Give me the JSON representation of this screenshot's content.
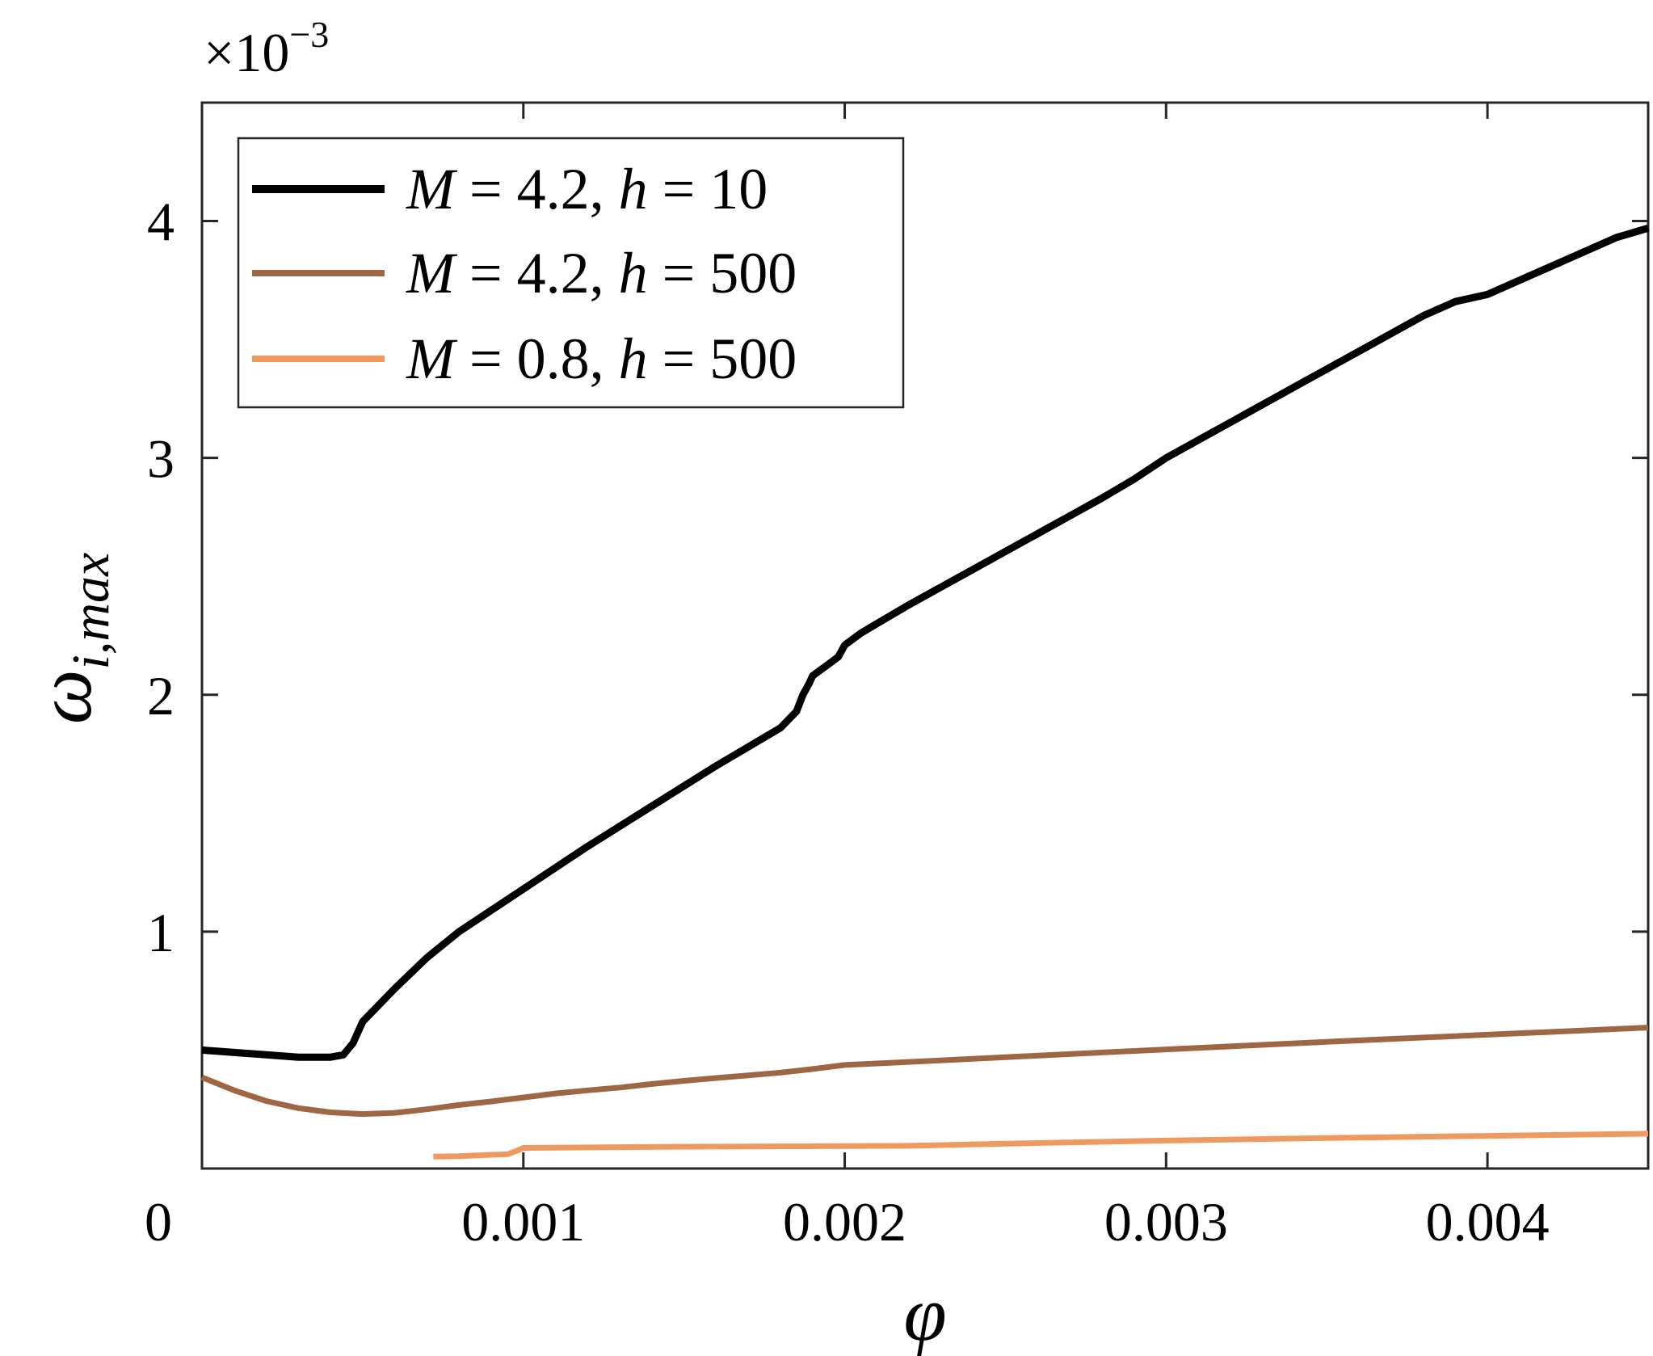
{
  "chart_data": {
    "type": "line",
    "xlabel": "φ",
    "ylabel": "ω",
    "ylabel_subscript": "i,max",
    "y_multiplier": {
      "prefix": "×10",
      "exponent": "−3"
    },
    "xlim": [
      0,
      0.0045
    ],
    "ylim": [
      0,
      0.0045
    ],
    "x_ticks": [
      0,
      0.001,
      0.002,
      0.003,
      0.004
    ],
    "x_tick_labels": [
      "0",
      "0.001",
      "0.002",
      "0.003",
      "0.004"
    ],
    "y_ticks": [
      0.001,
      0.002,
      0.003,
      0.004
    ],
    "y_tick_labels": [
      "1",
      "2",
      "3",
      "4"
    ],
    "grid": false,
    "box": true,
    "legend_placement": "top-left",
    "series": [
      {
        "name": "M = 4.2, h = 10",
        "legend": {
          "var1": "M",
          "eq1": " = 4.2, ",
          "var2": "h",
          "eq2": " = 10"
        },
        "color": "#000000",
        "points": [
          [
            0,
            0.0005
          ],
          [
            5e-05,
            0.000495
          ],
          [
            0.0001,
            0.00049
          ],
          [
            0.0002,
            0.00048
          ],
          [
            0.0003,
            0.00047
          ],
          [
            0.0004,
            0.00047
          ],
          [
            0.00044,
            0.00048
          ],
          [
            0.00047,
            0.00053
          ],
          [
            0.0005,
            0.00062
          ],
          [
            0.0006,
            0.00076
          ],
          [
            0.0007,
            0.00089
          ],
          [
            0.0008,
            0.001
          ],
          [
            0.0009,
            0.00109
          ],
          [
            0.001,
            0.00118
          ],
          [
            0.0012,
            0.00136
          ],
          [
            0.0014,
            0.00153
          ],
          [
            0.0016,
            0.0017
          ],
          [
            0.0017,
            0.00178
          ],
          [
            0.0018,
            0.00186
          ],
          [
            0.00185,
            0.00193
          ],
          [
            0.00187,
            0.002
          ],
          [
            0.00189,
            0.00205
          ],
          [
            0.0019,
            0.00208
          ],
          [
            0.00195,
            0.00213
          ],
          [
            0.00198,
            0.00216
          ],
          [
            0.002,
            0.00221
          ],
          [
            0.00205,
            0.00226
          ],
          [
            0.0021,
            0.0023
          ],
          [
            0.0022,
            0.00238
          ],
          [
            0.0024,
            0.00253
          ],
          [
            0.0026,
            0.00268
          ],
          [
            0.0028,
            0.00283
          ],
          [
            0.0029,
            0.00291
          ],
          [
            0.003,
            0.003
          ],
          [
            0.0032,
            0.00315
          ],
          [
            0.0034,
            0.0033
          ],
          [
            0.0036,
            0.00345
          ],
          [
            0.0038,
            0.0036
          ],
          [
            0.0039,
            0.00366
          ],
          [
            0.004,
            0.00369
          ],
          [
            0.0042,
            0.00381
          ],
          [
            0.0044,
            0.00393
          ],
          [
            0.0045,
            0.00397
          ]
        ]
      },
      {
        "name": "M = 4.2, h = 500",
        "legend": {
          "var1": "M",
          "eq1": " = 4.2, ",
          "var2": "h",
          "eq2": " = 500"
        },
        "color": "#9e6642",
        "points": [
          [
            0,
            0.000385
          ],
          [
            0.0001,
            0.00033
          ],
          [
            0.0002,
            0.000285
          ],
          [
            0.0003,
            0.000255
          ],
          [
            0.0004,
            0.000237
          ],
          [
            0.0005,
            0.00023
          ],
          [
            0.0006,
            0.000235
          ],
          [
            0.0007,
            0.00025
          ],
          [
            0.0008,
            0.000268
          ],
          [
            0.0009,
            0.000283
          ],
          [
            0.001,
            0.0003
          ],
          [
            0.0011,
            0.000317
          ],
          [
            0.0012,
            0.00033
          ],
          [
            0.0013,
            0.000342
          ],
          [
            0.0014,
            0.000357
          ],
          [
            0.0015,
            0.00037
          ],
          [
            0.0016,
            0.000382
          ],
          [
            0.0017,
            0.000393
          ],
          [
            0.0018,
            0.000405
          ],
          [
            0.0019,
            0.00042
          ],
          [
            0.002,
            0.000437
          ],
          [
            0.0022,
            0.00045
          ],
          [
            0.0025,
            0.00047
          ],
          [
            0.003,
            0.000503
          ],
          [
            0.0035,
            0.000535
          ],
          [
            0.004,
            0.000565
          ],
          [
            0.0045,
            0.000595
          ]
        ]
      },
      {
        "name": "M = 0.8, h = 500",
        "legend": {
          "var1": "M",
          "eq1": " = 0.8, ",
          "var2": "h",
          "eq2": " = 500"
        },
        "color": "#f0995f",
        "points": [
          [
            0.00072,
            5e-05
          ],
          [
            0.0008,
            5.2e-05
          ],
          [
            0.0009,
            5.8e-05
          ],
          [
            0.00095,
            6e-05
          ],
          [
            0.00098,
            7.5e-05
          ],
          [
            0.001,
            8.7e-05
          ],
          [
            0.0015,
            9.2e-05
          ],
          [
            0.002,
            9.5e-05
          ],
          [
            0.0022,
            9.6e-05
          ],
          [
            0.0025,
            0.000105
          ],
          [
            0.003,
            0.000118
          ],
          [
            0.0035,
            0.000129
          ],
          [
            0.004,
            0.000138
          ],
          [
            0.0045,
            0.000147
          ]
        ]
      }
    ]
  }
}
